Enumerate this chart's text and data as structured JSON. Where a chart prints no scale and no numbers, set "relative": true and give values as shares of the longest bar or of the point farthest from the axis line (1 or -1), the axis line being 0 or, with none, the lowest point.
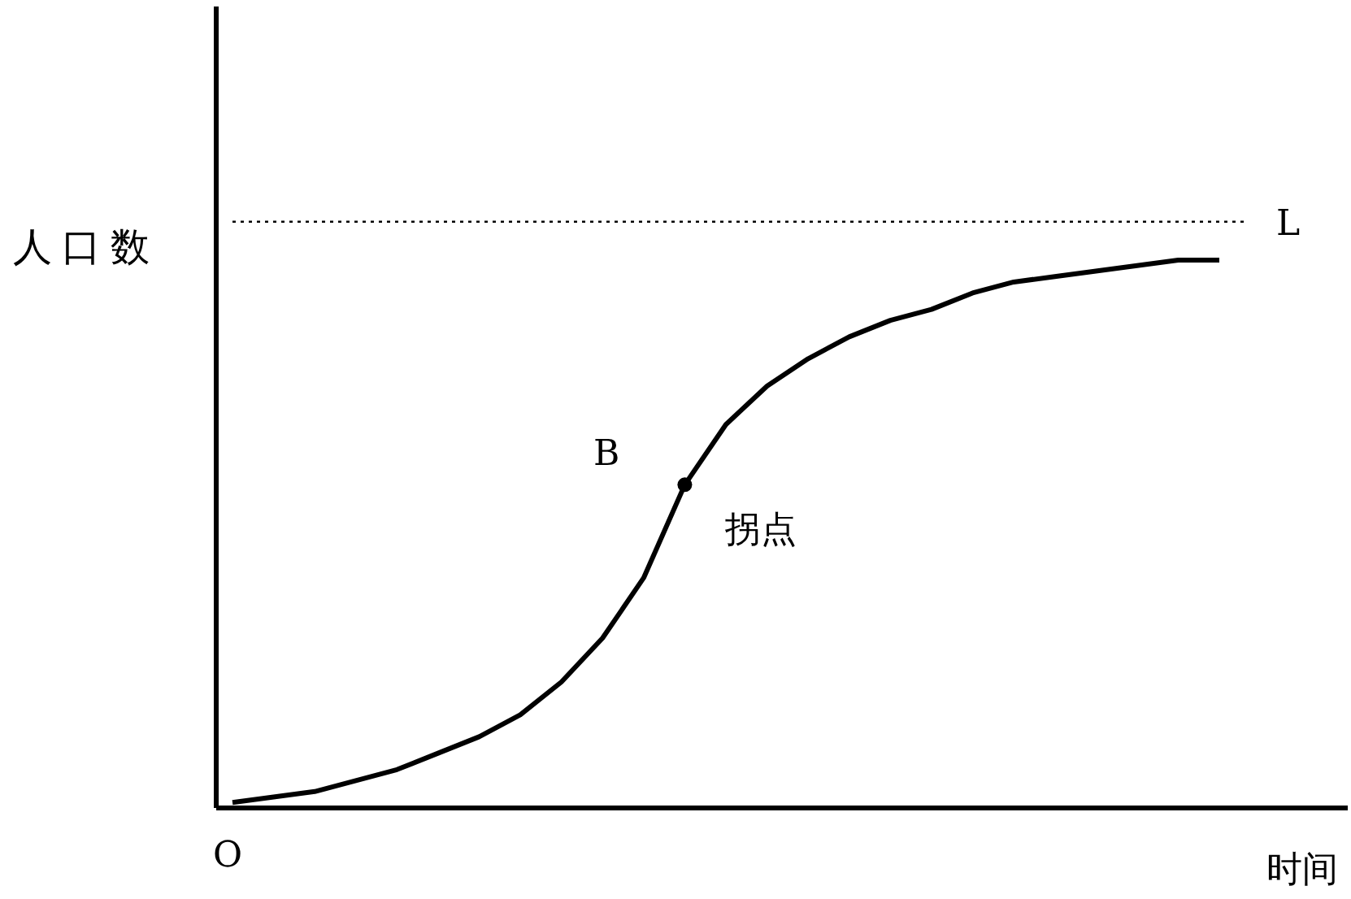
{
  "chart_data": {
    "type": "line",
    "relative": true,
    "xlabel": "时间",
    "ylabel": "人口数",
    "categories": [
      null,
      null,
      null,
      null,
      null,
      null,
      null,
      null,
      null,
      null,
      null,
      null,
      null,
      null,
      null,
      null,
      null,
      null,
      null,
      null,
      null,
      null,
      null,
      null,
      null
    ],
    "series": [
      {
        "color": "#000000",
        "values": [
          0.01,
          0.02,
          0.03,
          0.05,
          0.07,
          0.1,
          0.13,
          0.17,
          0.23,
          0.31,
          0.42,
          0.59,
          0.7,
          0.77,
          0.82,
          0.86,
          0.89,
          0.91,
          0.94,
          0.96,
          0.97,
          0.98,
          0.99,
          1.0,
          1.0
        ]
      }
    ],
    "ref_lines": [
      {
        "axis": "y",
        "value": 1.07,
        "label": "L",
        "line_style": "dotted",
        "color": "#000000"
      }
    ],
    "annotations": [
      "B",
      "拐点",
      "O"
    ]
  }
}
